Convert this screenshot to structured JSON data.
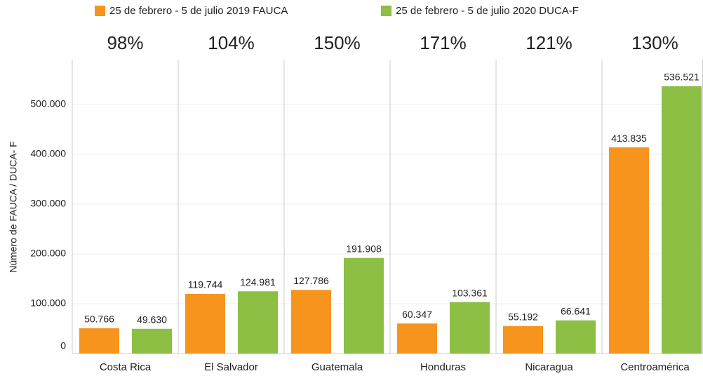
{
  "chart_data": {
    "type": "bar",
    "y_label": "Número de FAUCA / DUCA- F",
    "categories": [
      "Costa Rica",
      "El Salvador",
      "Guatemala",
      "Honduras",
      "Nicaragua",
      "Centroamérica"
    ],
    "annotations": [
      "98%",
      "104%",
      "150%",
      "171%",
      "121%",
      "130%"
    ],
    "series": [
      {
        "name": "25 de febrero - 5 de julio 2019 FAUCA",
        "color": "#f7941d",
        "values": [
          50766,
          119744,
          127786,
          60347,
          55192,
          413835
        ],
        "value_labels": [
          "50.766",
          "119.744",
          "127.786",
          "60.347",
          "55.192",
          "413.835"
        ]
      },
      {
        "name": "25 de febrero - 5 de julio 2020 DUCA-F",
        "color": "#8cbf44",
        "values": [
          49630,
          124981,
          191908,
          103361,
          66641,
          536521
        ],
        "value_labels": [
          "49.630",
          "124.981",
          "191.908",
          "103.361",
          "66.641",
          "536.521"
        ]
      }
    ],
    "ylim": [
      0,
      590000
    ],
    "yticks": [
      0,
      {
        "value": 100000,
        "label": "100.000"
      },
      {
        "value": 200000,
        "label": "200.000"
      },
      {
        "value": 300000,
        "label": "300.000"
      },
      {
        "value": 400000,
        "label": "400.000"
      },
      {
        "value": 500000,
        "label": "500.000"
      }
    ],
    "grid": true
  }
}
